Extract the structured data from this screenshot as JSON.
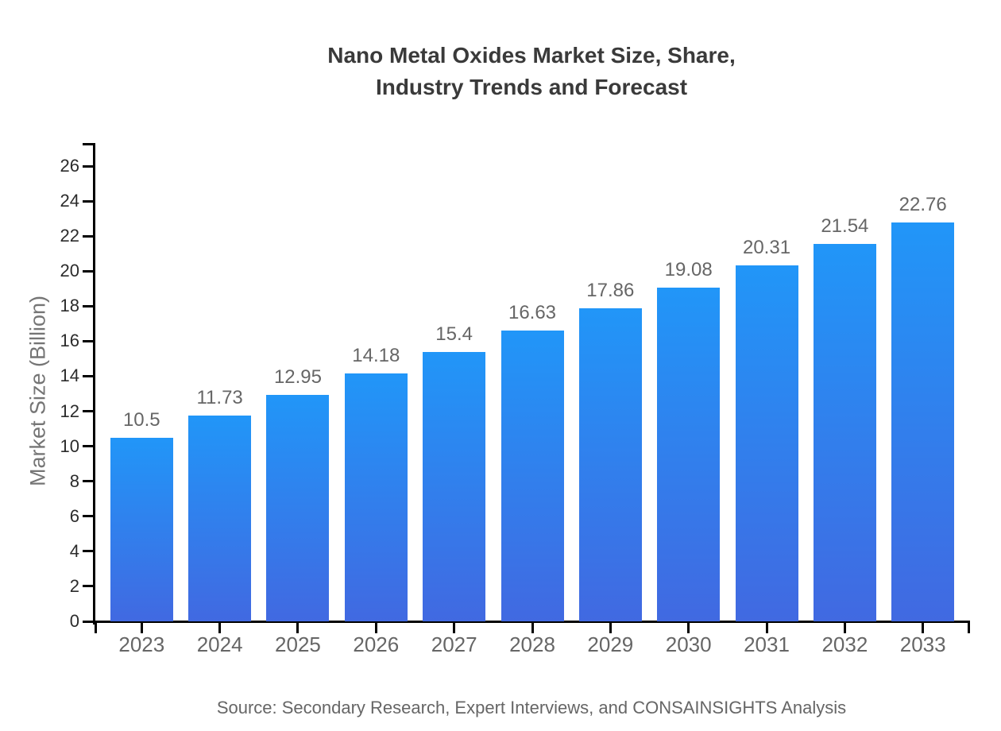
{
  "title_lines": [
    "Nano Metal Oxides Market Size, Share,",
    "Industry Trends and Forecast"
  ],
  "source_note": "Source: Secondary Research, Expert Interviews, and CONSAINSIGHTS Analysis",
  "colors": {
    "background": "#FFFFFF",
    "bar_top": "#2196F8",
    "bar_bottom": "#4169E1",
    "axis": "#000000",
    "title": "#3A3A3A",
    "x_tick_label": "#666666",
    "y_tick_label": "#2B2B2B",
    "value_label": "#666666",
    "axis_title": "#757575",
    "source_text": "#666666"
  },
  "chart_data": {
    "type": "bar",
    "title": "Nano Metal Oxides Market Size, Share, Industry Trends and Forecast",
    "categories": [
      "2023",
      "2024",
      "2025",
      "2026",
      "2027",
      "2028",
      "2029",
      "2030",
      "2031",
      "2032",
      "2033"
    ],
    "values": [
      10.5,
      11.73,
      12.95,
      14.18,
      15.4,
      16.63,
      17.86,
      19.08,
      20.31,
      21.54,
      22.76
    ],
    "value_labels": [
      "10.5",
      "11.73",
      "12.95",
      "14.18",
      "15.4",
      "16.63",
      "17.86",
      "19.08",
      "20.31",
      "21.54",
      "22.76"
    ],
    "xlabel": "",
    "ylabel": "Market Size (Billion)",
    "ylim": [
      0,
      26
    ],
    "yticks": [
      0,
      2,
      4,
      6,
      8,
      10,
      12,
      14,
      16,
      18,
      20,
      22,
      24,
      26
    ],
    "grid": false,
    "legend": false,
    "value_labels_shown": true,
    "bar_gradient": true
  }
}
